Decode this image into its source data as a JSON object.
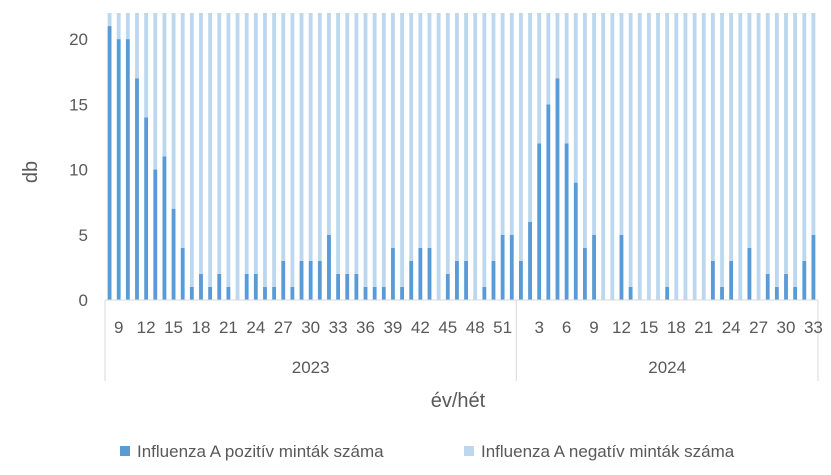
{
  "chart_data": {
    "type": "bar",
    "stacked": true,
    "ylabel": "db",
    "xlabel": "év/hét",
    "ylim": [
      0,
      22
    ],
    "yticks": [
      0,
      5,
      10,
      15,
      20
    ],
    "grid": false,
    "legend_position": "bottom",
    "x_weeks": [
      8,
      9,
      10,
      11,
      12,
      13,
      14,
      15,
      16,
      17,
      18,
      19,
      20,
      21,
      22,
      23,
      24,
      25,
      26,
      27,
      28,
      29,
      30,
      31,
      32,
      33,
      34,
      35,
      36,
      37,
      38,
      39,
      40,
      41,
      42,
      43,
      44,
      45,
      46,
      47,
      48,
      49,
      50,
      51,
      52,
      1,
      2,
      3,
      4,
      5,
      6,
      7,
      8,
      9,
      10,
      11,
      12,
      13,
      14,
      15,
      16,
      17,
      18,
      19,
      20,
      21,
      22,
      23,
      24,
      25,
      26,
      27,
      28,
      29,
      30,
      31,
      32,
      33
    ],
    "x_years": [
      2023,
      2023,
      2023,
      2023,
      2023,
      2023,
      2023,
      2023,
      2023,
      2023,
      2023,
      2023,
      2023,
      2023,
      2023,
      2023,
      2023,
      2023,
      2023,
      2023,
      2023,
      2023,
      2023,
      2023,
      2023,
      2023,
      2023,
      2023,
      2023,
      2023,
      2023,
      2023,
      2023,
      2023,
      2023,
      2023,
      2023,
      2023,
      2023,
      2023,
      2023,
      2023,
      2023,
      2023,
      2023,
      2024,
      2024,
      2024,
      2024,
      2024,
      2024,
      2024,
      2024,
      2024,
      2024,
      2024,
      2024,
      2024,
      2024,
      2024,
      2024,
      2024,
      2024,
      2024,
      2024,
      2024,
      2024,
      2024,
      2024,
      2024,
      2024,
      2024,
      2024,
      2024,
      2024,
      2024,
      2024,
      2024
    ],
    "week_tick_labels": [
      {
        "year": 2023,
        "week": 9,
        "label": "9"
      },
      {
        "year": 2023,
        "week": 12,
        "label": "12"
      },
      {
        "year": 2023,
        "week": 15,
        "label": "15"
      },
      {
        "year": 2023,
        "week": 18,
        "label": "18"
      },
      {
        "year": 2023,
        "week": 21,
        "label": "21"
      },
      {
        "year": 2023,
        "week": 24,
        "label": "24"
      },
      {
        "year": 2023,
        "week": 27,
        "label": "27"
      },
      {
        "year": 2023,
        "week": 30,
        "label": "30"
      },
      {
        "year": 2023,
        "week": 33,
        "label": "33"
      },
      {
        "year": 2023,
        "week": 36,
        "label": "36"
      },
      {
        "year": 2023,
        "week": 39,
        "label": "39"
      },
      {
        "year": 2023,
        "week": 42,
        "label": "42"
      },
      {
        "year": 2023,
        "week": 45,
        "label": "45"
      },
      {
        "year": 2023,
        "week": 48,
        "label": "48"
      },
      {
        "year": 2023,
        "week": 51,
        "label": "51"
      },
      {
        "year": 2024,
        "week": 3,
        "label": "3"
      },
      {
        "year": 2024,
        "week": 6,
        "label": "6"
      },
      {
        "year": 2024,
        "week": 9,
        "label": "9"
      },
      {
        "year": 2024,
        "week": 12,
        "label": "12"
      },
      {
        "year": 2024,
        "week": 15,
        "label": "15"
      },
      {
        "year": 2024,
        "week": 18,
        "label": "18"
      },
      {
        "year": 2024,
        "week": 21,
        "label": "21"
      },
      {
        "year": 2024,
        "week": 24,
        "label": "24"
      },
      {
        "year": 2024,
        "week": 27,
        "label": "27"
      },
      {
        "year": 2024,
        "week": 30,
        "label": "30"
      },
      {
        "year": 2024,
        "week": 33,
        "label": "33"
      }
    ],
    "year_labels": [
      {
        "year": 2023,
        "label": "2023"
      },
      {
        "year": 2024,
        "label": "2024"
      }
    ],
    "series": [
      {
        "name": "Influenza A pozitív minták száma",
        "color": "#5B9BD5",
        "values": [
          21,
          20,
          20,
          17,
          14,
          10,
          11,
          7,
          4,
          1,
          2,
          1,
          2,
          1,
          0,
          2,
          2,
          1,
          1,
          3,
          1,
          3,
          3,
          3,
          5,
          2,
          2,
          2,
          1,
          1,
          1,
          4,
          1,
          3,
          4,
          4,
          0,
          2,
          3,
          3,
          0,
          1,
          3,
          5,
          5,
          3,
          6,
          12,
          15,
          17,
          12,
          9,
          4,
          5,
          0,
          0,
          5,
          1,
          0,
          0,
          0,
          1,
          0,
          0,
          0,
          0,
          3,
          1,
          3,
          0,
          4,
          0,
          2,
          1,
          2,
          1,
          3,
          5
        ]
      },
      {
        "name": "Influenza A negatív minták száma",
        "color": "#BDD7EE",
        "values": [
          1,
          2,
          2,
          5,
          8,
          12,
          11,
          15,
          18,
          21,
          20,
          21,
          20,
          21,
          22,
          20,
          20,
          21,
          21,
          19,
          21,
          19,
          19,
          19,
          17,
          20,
          20,
          20,
          21,
          21,
          21,
          18,
          21,
          19,
          18,
          18,
          22,
          20,
          19,
          19,
          22,
          21,
          19,
          17,
          17,
          19,
          16,
          10,
          7,
          5,
          10,
          13,
          18,
          17,
          22,
          22,
          17,
          21,
          22,
          22,
          22,
          21,
          22,
          22,
          22,
          22,
          19,
          21,
          19,
          22,
          18,
          22,
          20,
          21,
          20,
          21,
          19,
          17
        ]
      }
    ]
  }
}
